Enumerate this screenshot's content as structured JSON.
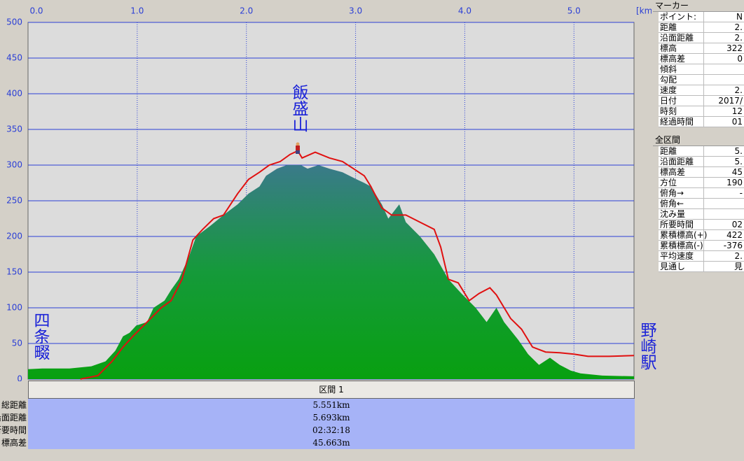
{
  "chart_data": {
    "type": "area",
    "x_unit": "[km]",
    "xlim": [
      0,
      5.55
    ],
    "ylim": [
      0,
      500
    ],
    "xticks": [
      {
        "value": 0,
        "label": "0.0"
      },
      {
        "value": 1,
        "label": "1.0"
      },
      {
        "value": 2,
        "label": "2.0"
      },
      {
        "value": 3,
        "label": "3.0"
      },
      {
        "value": 4,
        "label": "4.0"
      },
      {
        "value": 5,
        "label": "5.0"
      }
    ],
    "yticks": [
      0,
      50,
      100,
      150,
      200,
      250,
      300,
      350,
      400,
      450,
      500
    ],
    "annotations": [
      "四条畷",
      "飯盛山",
      "野崎駅"
    ],
    "series": [
      {
        "kind": "area",
        "color": "#0a9a1e",
        "x": [
          0,
          0.13,
          0.38,
          0.58,
          0.71,
          0.8,
          0.87,
          0.93,
          0.99,
          1.09,
          1.15,
          1.25,
          1.31,
          1.38,
          1.47,
          1.54,
          1.67,
          1.79,
          1.92,
          2.02,
          2.12,
          2.18,
          2.28,
          2.37,
          2.5,
          2.56,
          2.66,
          2.76,
          2.88,
          3.01,
          3.08,
          3.14,
          3.24,
          3.3,
          3.4,
          3.46,
          3.59,
          3.72,
          3.85,
          3.97,
          4.1,
          4.2,
          4.29,
          4.36,
          4.49,
          4.58,
          4.68,
          4.78,
          4.87,
          4.97,
          5.06,
          5.26,
          5.55
        ],
        "values": [
          14,
          15,
          15,
          18,
          25,
          40,
          60,
          65,
          75,
          80,
          100,
          110,
          125,
          140,
          170,
          200,
          215,
          230,
          245,
          260,
          270,
          285,
          295,
          300,
          300,
          295,
          300,
          295,
          290,
          280,
          275,
          270,
          245,
          225,
          245,
          220,
          200,
          175,
          140,
          120,
          100,
          80,
          100,
          80,
          55,
          35,
          20,
          30,
          20,
          12,
          8,
          5,
          4
        ]
      },
      {
        "kind": "line",
        "color": "#e01010",
        "x": [
          0.48,
          0.64,
          0.77,
          0.87,
          0.96,
          1.09,
          1.22,
          1.31,
          1.41,
          1.51,
          1.6,
          1.7,
          1.79,
          1.92,
          2.02,
          2.12,
          2.21,
          2.31,
          2.4,
          2.47,
          2.51,
          2.63,
          2.76,
          2.88,
          2.98,
          3.08,
          3.14,
          3.24,
          3.33,
          3.46,
          3.59,
          3.72,
          3.78,
          3.85,
          3.94,
          4.04,
          4.13,
          4.23,
          4.29,
          4.42,
          4.52,
          4.62,
          4.74,
          4.87,
          5.0,
          5.13,
          5.32,
          5.55
        ],
        "values": [
          0,
          5,
          25,
          45,
          60,
          80,
          100,
          110,
          140,
          195,
          210,
          225,
          230,
          260,
          280,
          290,
          300,
          305,
          315,
          320,
          310,
          318,
          310,
          305,
          295,
          285,
          270,
          240,
          230,
          230,
          220,
          210,
          185,
          140,
          135,
          110,
          120,
          128,
          118,
          85,
          70,
          45,
          38,
          37,
          35,
          32,
          32,
          33
        ]
      }
    ]
  },
  "marker_panel": {
    "title": "マーカー",
    "rows": [
      [
        "ポイント:",
        "N"
      ],
      [
        "距離",
        "2."
      ],
      [
        "沿面距離",
        "2."
      ],
      [
        "標高",
        "322"
      ],
      [
        "標高差",
        "0"
      ],
      [
        "傾斜"
      ],
      [
        "勾配"
      ],
      [
        "速度",
        "2."
      ],
      [
        "日付",
        "2017/"
      ],
      [
        "時刻",
        "12"
      ],
      [
        "経過時間",
        "01"
      ]
    ]
  },
  "total_panel": {
    "title": "全区間",
    "rows": [
      [
        "距離",
        "5."
      ],
      [
        "沿面距離",
        "5."
      ],
      [
        "標高差",
        "45"
      ],
      [
        "方位",
        "190"
      ],
      [
        "俯角→",
        "-"
      ],
      [
        "俯角←"
      ],
      [
        "沈み量"
      ],
      [
        "所要時間",
        "02"
      ],
      [
        "累積標高(+)",
        "422"
      ],
      [
        "累積標高(-)",
        "-376"
      ],
      [
        "平均速度",
        "2."
      ],
      [
        "見通し",
        "見"
      ]
    ]
  },
  "section": {
    "title": "区間 1",
    "labels": [
      "総距離",
      "沿面距離",
      "所要時間",
      "標高差"
    ],
    "values": [
      "5.551km",
      "5.693km",
      "02:32:18",
      "45.663m"
    ]
  }
}
